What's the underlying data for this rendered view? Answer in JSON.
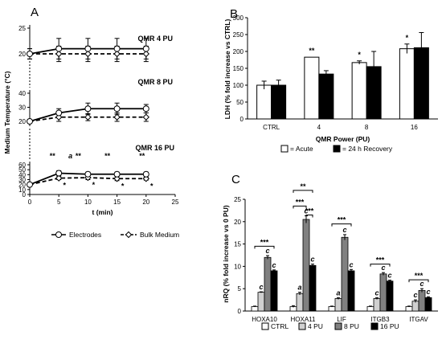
{
  "panels": {
    "a": "A",
    "b": "B",
    "c": "C"
  },
  "chart_data": [
    {
      "panel": "A",
      "type": "line",
      "xlabel": "t (min)",
      "ylabel": "Medium Temperature (°C)",
      "xticks": [
        0,
        5,
        10,
        15,
        20,
        25
      ],
      "xlim": [
        0,
        25
      ],
      "segment_labels": [
        "QMR 4 PU",
        "QMR 8 PU",
        "QMR 16 PU"
      ],
      "segments": [
        {
          "name": "QMR 4 PU",
          "ylim": [
            0,
            25
          ],
          "yticks": [
            0,
            5,
            10,
            15,
            20,
            25
          ],
          "x": [
            0,
            5,
            10,
            15,
            20
          ],
          "electrodes": [
            20,
            21,
            21,
            21,
            21
          ],
          "electrodes_err": [
            1,
            2,
            2,
            2,
            2
          ],
          "bulk": [
            20,
            20,
            20,
            20,
            20
          ],
          "bulk_err": [
            1,
            1.5,
            1.5,
            1.5,
            1.5
          ]
        },
        {
          "name": "QMR 8 PU",
          "ylim": [
            0,
            40
          ],
          "yticks": [
            0,
            10,
            20,
            30,
            40
          ],
          "x": [
            0,
            5,
            10,
            15,
            20
          ],
          "electrodes": [
            20,
            26,
            29,
            29,
            29
          ],
          "electrodes_err": [
            1,
            3,
            4,
            4,
            3
          ],
          "bulk": [
            20,
            23,
            23,
            23,
            23
          ],
          "bulk_err": [
            1,
            3,
            2.5,
            3,
            3
          ]
        },
        {
          "name": "QMR 16 PU",
          "ylim": [
            0,
            60
          ],
          "yticks": [
            0,
            10,
            20,
            30,
            40,
            50,
            60
          ],
          "x": [
            0,
            5,
            10,
            15,
            20
          ],
          "electrodes": [
            20,
            43,
            41,
            41,
            41
          ],
          "electrodes_err": [
            1,
            5,
            4,
            4,
            4
          ],
          "bulk": [
            20,
            33,
            34,
            32,
            32
          ],
          "bulk_err": [
            1,
            3,
            4,
            4,
            3
          ],
          "electrodes_marks": [
            "",
            "**",
            "**",
            "**",
            "**"
          ],
          "bulk_marks": [
            "",
            "*",
            "*",
            "*",
            "*"
          ],
          "extra_mark": "a"
        }
      ],
      "legend": [
        "Electrodes",
        "Bulk Medium"
      ]
    },
    {
      "panel": "B",
      "type": "bar",
      "ylabel": "LDH (% fold increase vs CTRL)",
      "xlabel": "QMR Power (PU)",
      "categories": [
        "CTRL",
        "4",
        "8",
        "16"
      ],
      "ylim": [
        0,
        300
      ],
      "yticks": [
        0,
        50,
        100,
        150,
        200,
        250,
        300
      ],
      "series": [
        {
          "name": "= Acute",
          "color": "#ffffff",
          "values": [
            100,
            183,
            167,
            208
          ],
          "errors": [
            12,
            0,
            5,
            14
          ]
        },
        {
          "name": "= 24 h Recovery",
          "color": "#000000",
          "values": [
            100,
            133,
            155,
            211
          ],
          "errors": [
            15,
            10,
            45,
            45
          ]
        }
      ],
      "marks": [
        "",
        "**",
        "*",
        "*"
      ]
    },
    {
      "panel": "C",
      "type": "bar",
      "ylabel": "nRQ (% fold increase vs 0 PU)",
      "categories": [
        "HOXA10",
        "HOXA11",
        "LIF",
        "ITGB3",
        "ITGAV"
      ],
      "ylim": [
        0,
        25
      ],
      "yticks": [
        0,
        5,
        10,
        15,
        20,
        25
      ],
      "series": [
        {
          "name": "CTRL",
          "color": "#ffffff",
          "values": [
            1,
            1,
            1,
            1,
            1
          ],
          "errors": [
            0.1,
            0.2,
            0.1,
            0.1,
            0.1
          ]
        },
        {
          "name": "4 PU",
          "color": "#d0d0d0",
          "values": [
            4.2,
            3.9,
            2.8,
            2.8,
            2.2
          ],
          "errors": [
            0.1,
            0.3,
            0.2,
            0.2,
            0.3
          ]
        },
        {
          "name": "8 PU",
          "color": "#808080",
          "values": [
            12,
            20.5,
            16.5,
            8.3,
            4.6
          ],
          "errors": [
            0.4,
            0.8,
            0.6,
            0.3,
            0.4
          ]
        },
        {
          "name": "16 PU",
          "color": "#000000",
          "values": [
            9,
            10.2,
            9,
            6.7,
            3
          ],
          "errors": [
            0.2,
            0.3,
            0.3,
            0.2,
            0.2
          ]
        }
      ],
      "bar_letters": {
        "HOXA10": [
          "",
          "c",
          "c",
          "c"
        ],
        "HOXA11": [
          "",
          "a",
          "c",
          "c"
        ],
        "LIF": [
          "",
          "a",
          "c",
          "c"
        ],
        "ITGB3": [
          "",
          "c",
          "c",
          "c"
        ],
        "ITGAV": [
          "",
          "c",
          "c",
          "c"
        ]
      },
      "brackets": [
        "***",
        "***",
        "**",
        "***",
        "***",
        "***",
        "***"
      ]
    }
  ]
}
